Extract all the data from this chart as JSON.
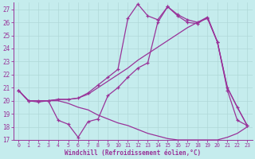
{
  "background_color": "#c5eced",
  "grid_color": "#b0d8d8",
  "line_color": "#993399",
  "xlim": [
    -0.5,
    23.5
  ],
  "ylim": [
    17,
    27.5
  ],
  "xlabel": "Windchill (Refroidissement éolien,°C)",
  "yticks": [
    17,
    18,
    19,
    20,
    21,
    22,
    23,
    24,
    25,
    26,
    27
  ],
  "xticks": [
    0,
    1,
    2,
    3,
    4,
    5,
    6,
    7,
    8,
    9,
    10,
    11,
    12,
    13,
    14,
    15,
    16,
    17,
    18,
    19,
    20,
    21,
    22,
    23
  ],
  "line1_x": [
    0,
    1,
    2,
    3,
    4,
    5,
    6,
    7,
    8,
    9,
    10,
    11,
    12,
    13,
    14,
    15,
    16,
    17,
    18,
    19,
    20,
    21,
    22,
    23
  ],
  "line1_y": [
    20.8,
    20.0,
    19.9,
    20.0,
    18.5,
    18.2,
    17.2,
    18.4,
    18.6,
    20.4,
    21.0,
    21.8,
    22.5,
    22.9,
    26.0,
    27.2,
    26.6,
    26.2,
    26.0,
    26.3,
    24.5,
    20.8,
    18.5,
    18.1
  ],
  "line2_x": [
    0,
    1,
    2,
    3,
    4,
    5,
    6,
    7,
    8,
    9,
    10,
    11,
    12,
    13,
    14,
    15,
    16,
    17,
    18,
    19,
    20,
    21,
    22,
    23
  ],
  "line2_y": [
    20.8,
    20.0,
    20.0,
    20.0,
    20.1,
    20.1,
    20.2,
    20.5,
    21.0,
    21.5,
    22.0,
    22.5,
    23.1,
    23.6,
    24.1,
    24.6,
    25.1,
    25.6,
    26.0,
    26.4,
    24.5,
    21.0,
    19.5,
    18.1
  ],
  "line3_x": [
    0,
    1,
    2,
    3,
    4,
    5,
    6,
    7,
    8,
    9,
    10,
    11,
    12,
    13,
    14,
    15,
    16,
    17,
    18,
    19,
    20,
    21,
    22,
    23
  ],
  "line3_y": [
    20.8,
    20.0,
    20.0,
    20.0,
    20.1,
    20.1,
    20.2,
    20.6,
    21.2,
    21.8,
    22.4,
    26.3,
    27.4,
    26.5,
    26.2,
    27.2,
    26.5,
    26.0,
    25.9,
    26.4,
    24.5,
    21.0,
    19.5,
    18.1
  ],
  "line4_x": [
    0,
    1,
    2,
    3,
    4,
    5,
    6,
    7,
    8,
    9,
    10,
    11,
    12,
    13,
    14,
    15,
    16,
    17,
    18,
    19,
    20,
    21,
    22,
    23
  ],
  "line4_y": [
    20.8,
    20.0,
    20.0,
    20.0,
    20.0,
    19.8,
    19.5,
    19.3,
    18.9,
    18.6,
    18.3,
    18.1,
    17.8,
    17.5,
    17.3,
    17.1,
    17.0,
    17.0,
    17.0,
    17.0,
    17.0,
    17.2,
    17.5,
    18.0
  ]
}
